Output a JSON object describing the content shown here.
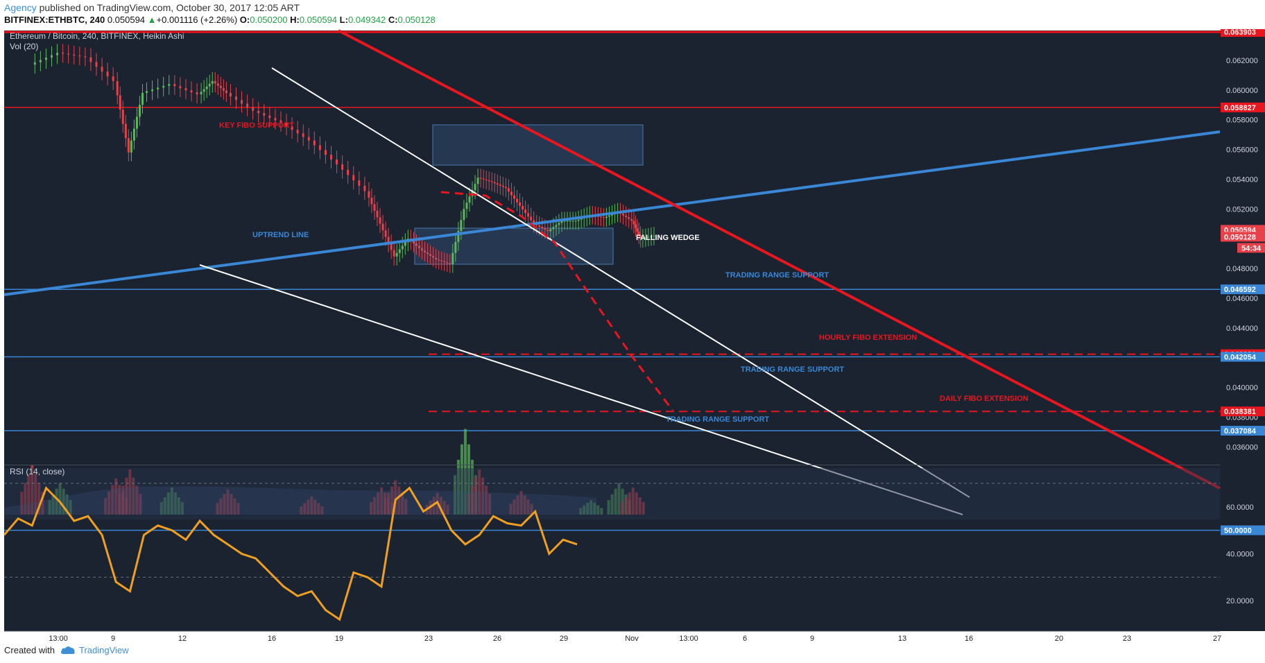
{
  "header": {
    "author": "Agency",
    "published": "published on TradingView.com, October 30, 2017 12:05 ART",
    "symbol": "BITFINEX:ETHBTC, 240",
    "last": "0.050594",
    "change_arrow": "▲",
    "change": "+0.001116 (+2.26%)",
    "o_label": "O:",
    "o": "0.050200",
    "h_label": "H:",
    "h": "0.050594",
    "l_label": "L:",
    "l": "0.049342",
    "c_label": "C:",
    "c": "0.050128"
  },
  "footer": {
    "created_with": "Created with",
    "brand": "TradingView",
    "logo_icon": "cloud-icon"
  },
  "colors": {
    "bg": "#18202f",
    "up": "#5cb85c",
    "down": "#e8414a",
    "red_line": "#e8161e",
    "blue_line": "#3a87d6",
    "rsi": "#f0a020"
  },
  "chart_data": {
    "type": "candlestick",
    "title": "Ethereum / Bitcoin, 240, BITFINEX, Heikin Ashi",
    "volume_label": "Vol (20)",
    "y_scale": "linear",
    "ylim": [
      0.0348,
      0.064
    ],
    "y_ticks": [
      "0.062000",
      "0.060000",
      "0.058000",
      "0.056000",
      "0.054000",
      "0.052000",
      "0.048000",
      "0.046000",
      "0.044000",
      "0.040000",
      "0.038000",
      "0.036000"
    ],
    "x_ticks": [
      "13:00",
      "9",
      "12",
      "16",
      "19",
      "23",
      "26",
      "29",
      "Nov",
      "13:00",
      "6",
      "9",
      "13",
      "16",
      "20",
      "23",
      "27"
    ],
    "price_path": [
      {
        "x": 9.5,
        "y": 0.0617
      },
      {
        "x": 10.5,
        "y": 0.0625
      },
      {
        "x": 11.5,
        "y": 0.0622
      },
      {
        "x": 12.5,
        "y": 0.0606
      },
      {
        "x": 13.0,
        "y": 0.0558
      },
      {
        "x": 13.5,
        "y": 0.0598
      },
      {
        "x": 14.5,
        "y": 0.0604
      },
      {
        "x": 15.5,
        "y": 0.0597
      },
      {
        "x": 16.0,
        "y": 0.0606
      },
      {
        "x": 16.5,
        "y": 0.0598
      },
      {
        "x": 17.5,
        "y": 0.0586
      },
      {
        "x": 18.5,
        "y": 0.0578
      },
      {
        "x": 19.5,
        "y": 0.0566
      },
      {
        "x": 20.5,
        "y": 0.055
      },
      {
        "x": 21.5,
        "y": 0.0532
      },
      {
        "x": 22.0,
        "y": 0.051
      },
      {
        "x": 22.5,
        "y": 0.0488
      },
      {
        "x": 23.0,
        "y": 0.05
      },
      {
        "x": 23.5,
        "y": 0.0492
      },
      {
        "x": 24.0,
        "y": 0.0486
      },
      {
        "x": 24.5,
        "y": 0.0483
      },
      {
        "x": 25.0,
        "y": 0.052
      },
      {
        "x": 25.5,
        "y": 0.0541
      },
      {
        "x": 26.0,
        "y": 0.0538
      },
      {
        "x": 26.5,
        "y": 0.0534
      },
      {
        "x": 27.0,
        "y": 0.0522
      },
      {
        "x": 27.5,
        "y": 0.051
      },
      {
        "x": 28.0,
        "y": 0.0505
      },
      {
        "x": 28.5,
        "y": 0.0512
      },
      {
        "x": 29.0,
        "y": 0.0512
      },
      {
        "x": 29.5,
        "y": 0.0516
      },
      {
        "x": 30.0,
        "y": 0.0514
      },
      {
        "x": 30.5,
        "y": 0.0518
      },
      {
        "x": 31.0,
        "y": 0.0512
      },
      {
        "x": 31.3,
        "y": 0.05
      },
      {
        "x": 31.8,
        "y": 0.0502
      }
    ],
    "volume": [
      {
        "x": 9.5,
        "v": 0.55,
        "up": false
      },
      {
        "x": 10.5,
        "v": 0.35,
        "up": true
      },
      {
        "x": 12.5,
        "v": 0.4,
        "up": false
      },
      {
        "x": 13.0,
        "v": 0.5,
        "up": false
      },
      {
        "x": 14.5,
        "v": 0.3,
        "up": true
      },
      {
        "x": 16.5,
        "v": 0.28,
        "up": false
      },
      {
        "x": 19.5,
        "v": 0.2,
        "up": false
      },
      {
        "x": 22.0,
        "v": 0.3,
        "up": false
      },
      {
        "x": 22.5,
        "v": 0.38,
        "up": false
      },
      {
        "x": 24.0,
        "v": 0.24,
        "up": false
      },
      {
        "x": 25.0,
        "v": 0.95,
        "up": true
      },
      {
        "x": 25.5,
        "v": 0.5,
        "up": false
      },
      {
        "x": 27.0,
        "v": 0.26,
        "up": false
      },
      {
        "x": 29.5,
        "v": 0.16,
        "up": true
      },
      {
        "x": 30.5,
        "v": 0.35,
        "up": true
      },
      {
        "x": 31.0,
        "v": 0.3,
        "up": false
      }
    ],
    "rsi": {
      "label": "RSI (14, close)",
      "ylim": [
        10,
        75
      ],
      "ticks": [
        "60.0000",
        "40.0000",
        "20.0000"
      ],
      "level": "50.0000",
      "values": [
        {
          "x": 8.5,
          "y": 48
        },
        {
          "x": 9.0,
          "y": 55
        },
        {
          "x": 9.5,
          "y": 52
        },
        {
          "x": 10.0,
          "y": 68
        },
        {
          "x": 10.5,
          "y": 62
        },
        {
          "x": 11.0,
          "y": 54
        },
        {
          "x": 11.5,
          "y": 56
        },
        {
          "x": 12.0,
          "y": 48
        },
        {
          "x": 12.5,
          "y": 28
        },
        {
          "x": 13.0,
          "y": 24
        },
        {
          "x": 13.5,
          "y": 48
        },
        {
          "x": 14.0,
          "y": 52
        },
        {
          "x": 14.5,
          "y": 50
        },
        {
          "x": 15.0,
          "y": 46
        },
        {
          "x": 15.5,
          "y": 54
        },
        {
          "x": 16.0,
          "y": 48
        },
        {
          "x": 16.5,
          "y": 44
        },
        {
          "x": 17.0,
          "y": 40
        },
        {
          "x": 17.5,
          "y": 38
        },
        {
          "x": 18.0,
          "y": 32
        },
        {
          "x": 18.5,
          "y": 26
        },
        {
          "x": 19.0,
          "y": 22
        },
        {
          "x": 19.5,
          "y": 24
        },
        {
          "x": 20.0,
          "y": 16
        },
        {
          "x": 20.5,
          "y": 12
        },
        {
          "x": 21.0,
          "y": 32
        },
        {
          "x": 21.5,
          "y": 30
        },
        {
          "x": 22.0,
          "y": 26
        },
        {
          "x": 22.5,
          "y": 63
        },
        {
          "x": 23.0,
          "y": 68
        },
        {
          "x": 23.5,
          "y": 58
        },
        {
          "x": 24.0,
          "y": 62
        },
        {
          "x": 24.5,
          "y": 50
        },
        {
          "x": 25.0,
          "y": 44
        },
        {
          "x": 25.5,
          "y": 48
        },
        {
          "x": 26.0,
          "y": 56
        },
        {
          "x": 26.5,
          "y": 53
        },
        {
          "x": 27.0,
          "y": 52
        },
        {
          "x": 27.5,
          "y": 58
        },
        {
          "x": 28.0,
          "y": 40
        },
        {
          "x": 28.5,
          "y": 46
        },
        {
          "x": 29.0,
          "y": 44
        }
      ]
    },
    "levels": [
      {
        "price": 0.063903,
        "label": "0.063903",
        "color": "#e8161e",
        "width": 3
      },
      {
        "price": 0.058827,
        "label": "0.058827",
        "color": "#e8161e",
        "width": 1.5
      },
      {
        "price": 0.046592,
        "label": "0.046592",
        "color": "#3a87d6",
        "width": 1.5
      },
      {
        "price": 0.042231,
        "label": "0.042231",
        "color": "#e8161e",
        "width": 2,
        "dashed": true
      },
      {
        "price": 0.042054,
        "label": "0.042054",
        "color": "#3a87d6",
        "width": 1.5
      },
      {
        "price": 0.038381,
        "label": "0.038381",
        "color": "#e8161e",
        "width": 2,
        "dashed": true
      },
      {
        "price": 0.037084,
        "label": "0.037084",
        "color": "#3a87d6",
        "width": 1.5
      }
    ],
    "price_badges": [
      {
        "price": 0.050594,
        "label": "0.050594"
      },
      {
        "price": 0.050128,
        "label": "0.050128"
      }
    ],
    "countdown": "54:34",
    "annotations": [
      {
        "text": "KEY FIBO SUPPORT",
        "color": "#e8161e"
      },
      {
        "text": "UPTREND LINE",
        "color": "#3a87d6"
      },
      {
        "text": "FALLING WEDGE",
        "color": "#ffffff"
      },
      {
        "text": "TRADING RANGE SUPPORT",
        "color": "#3a87d6"
      },
      {
        "text": "HOURLY FIBO EXTENSION",
        "color": "#e8161e"
      },
      {
        "text": "TRADING RANGE SUPPORT",
        "color": "#3a87d6"
      },
      {
        "text": "DAILY FIBO EXTENSION",
        "color": "#e8161e"
      },
      {
        "text": "TRADING RANGE SUPPORT",
        "color": "#3a87d6"
      }
    ]
  }
}
